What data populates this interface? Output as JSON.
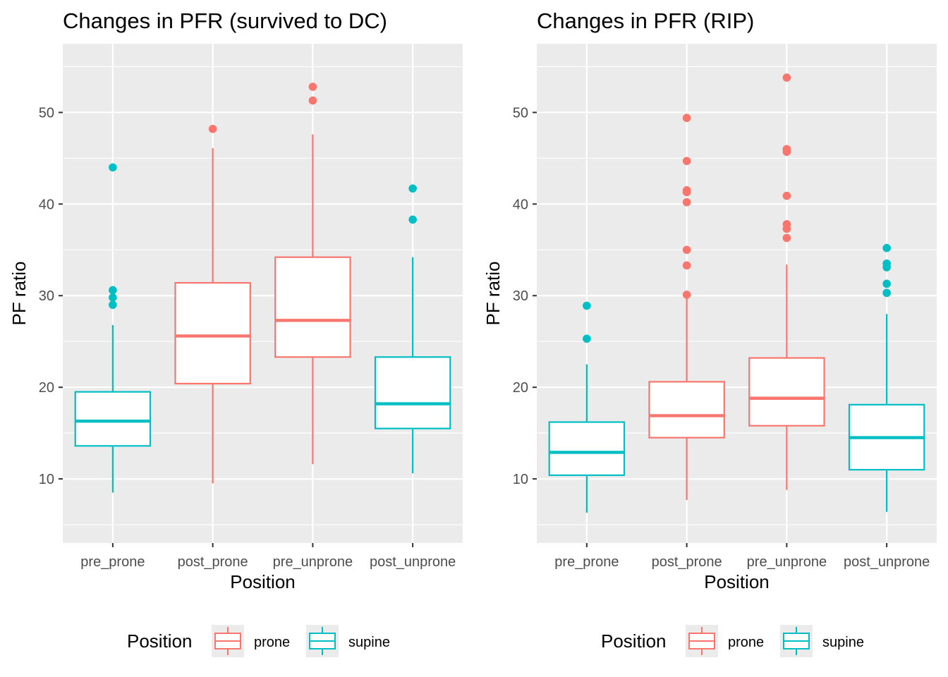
{
  "chart_data": [
    {
      "type": "boxplot",
      "title": "Changes in PFR (survived to DC)",
      "xlabel": "Position",
      "ylabel": "PF ratio",
      "ylim": [
        3,
        57.5
      ],
      "yticks": [
        10,
        20,
        30,
        40,
        50
      ],
      "grid": true,
      "categories": [
        "pre_prone",
        "post_prone",
        "pre_unprone",
        "post_unprone"
      ],
      "boxes": [
        {
          "category": "pre_prone",
          "group": "supine",
          "whisker_low": 8.5,
          "q1": 13.6,
          "median": 16.3,
          "q3": 19.5,
          "whisker_high": 26.8,
          "outliers": [
            44.0,
            30.6,
            29.8,
            29.0
          ]
        },
        {
          "category": "post_prone",
          "group": "prone",
          "whisker_low": 9.5,
          "q1": 20.4,
          "median": 25.6,
          "q3": 31.4,
          "whisker_high": 46.1,
          "outliers": [
            48.2
          ]
        },
        {
          "category": "pre_unprone",
          "group": "prone",
          "whisker_low": 11.6,
          "q1": 23.3,
          "median": 27.3,
          "q3": 34.2,
          "whisker_high": 47.6,
          "outliers": [
            52.8,
            51.3
          ]
        },
        {
          "category": "post_unprone",
          "group": "supine",
          "whisker_low": 10.6,
          "q1": 15.5,
          "median": 18.2,
          "q3": 23.3,
          "whisker_high": 34.2,
          "outliers": [
            41.7,
            38.3
          ]
        }
      ],
      "legend": {
        "title": "Position",
        "position": "bottom",
        "entries": [
          {
            "label": "prone",
            "key": "prone"
          },
          {
            "label": "supine",
            "key": "supine"
          }
        ]
      }
    },
    {
      "type": "boxplot",
      "title": "Changes in PFR (RIP)",
      "xlabel": "Position",
      "ylabel": "PF ratio",
      "ylim": [
        3,
        57.5
      ],
      "yticks": [
        10,
        20,
        30,
        40,
        50
      ],
      "grid": true,
      "categories": [
        "pre_prone",
        "post_prone",
        "pre_unprone",
        "post_unprone"
      ],
      "boxes": [
        {
          "category": "pre_prone",
          "group": "supine",
          "whisker_low": 6.3,
          "q1": 10.4,
          "median": 12.9,
          "q3": 16.2,
          "whisker_high": 22.5,
          "outliers": [
            28.9,
            25.3
          ]
        },
        {
          "category": "post_prone",
          "group": "prone",
          "whisker_low": 7.7,
          "q1": 14.5,
          "median": 16.9,
          "q3": 20.6,
          "whisker_high": 30.0,
          "outliers": [
            49.4,
            44.7,
            41.5,
            41.3,
            40.2,
            35.0,
            33.3,
            30.1
          ]
        },
        {
          "category": "pre_unprone",
          "group": "prone",
          "whisker_low": 8.8,
          "q1": 15.8,
          "median": 18.8,
          "q3": 23.2,
          "whisker_high": 33.4,
          "outliers": [
            53.8,
            46.0,
            45.7,
            40.9,
            37.8,
            37.3,
            36.3
          ]
        },
        {
          "category": "post_unprone",
          "group": "supine",
          "whisker_low": 6.4,
          "q1": 11.0,
          "median": 14.5,
          "q3": 18.1,
          "whisker_high": 28.0,
          "outliers": [
            35.2,
            33.5,
            33.1,
            31.3,
            30.3
          ]
        }
      ],
      "legend": {
        "title": "Position",
        "position": "bottom",
        "entries": [
          {
            "label": "prone",
            "key": "prone"
          },
          {
            "label": "supine",
            "key": "supine"
          }
        ]
      }
    }
  ],
  "colors": {
    "prone": "#F8766D",
    "supine": "#00BFC4",
    "panel": "#EBEBEB",
    "grid": "#FFFFFF",
    "text": "#000000",
    "tick_text": "#4D4D4D",
    "tick_mark": "#333333"
  }
}
